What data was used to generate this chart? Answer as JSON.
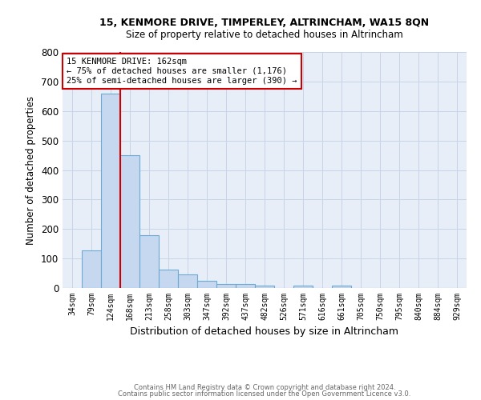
{
  "title1": "15, KENMORE DRIVE, TIMPERLEY, ALTRINCHAM, WA15 8QN",
  "title2": "Size of property relative to detached houses in Altrincham",
  "xlabel": "Distribution of detached houses by size in Altrincham",
  "ylabel": "Number of detached properties",
  "footer1": "Contains HM Land Registry data © Crown copyright and database right 2024.",
  "footer2": "Contains public sector information licensed under the Open Government Licence v3.0.",
  "bin_labels": [
    "34sqm",
    "79sqm",
    "124sqm",
    "168sqm",
    "213sqm",
    "258sqm",
    "303sqm",
    "347sqm",
    "392sqm",
    "437sqm",
    "482sqm",
    "526sqm",
    "571sqm",
    "616sqm",
    "661sqm",
    "705sqm",
    "750sqm",
    "795sqm",
    "840sqm",
    "884sqm",
    "929sqm"
  ],
  "bar_heights": [
    0,
    128,
    660,
    450,
    180,
    63,
    47,
    25,
    13,
    13,
    8,
    0,
    8,
    0,
    8,
    0,
    0,
    0,
    0,
    0,
    0
  ],
  "bar_color": "#c5d8ef",
  "bar_edge_color": "#6aaad4",
  "vline_color": "#cc0000",
  "annotation_text": "15 KENMORE DRIVE: 162sqm\n← 75% of detached houses are smaller (1,176)\n25% of semi-detached houses are larger (390) →",
  "annotation_box_color": "#ffffff",
  "annotation_box_edge": "#cc0000",
  "ylim": [
    0,
    800
  ],
  "yticks": [
    0,
    100,
    200,
    300,
    400,
    500,
    600,
    700,
    800
  ],
  "grid_color": "#c8d4e8",
  "background_color": "#e8eef8",
  "figsize": [
    6.0,
    5.0
  ],
  "dpi": 100
}
